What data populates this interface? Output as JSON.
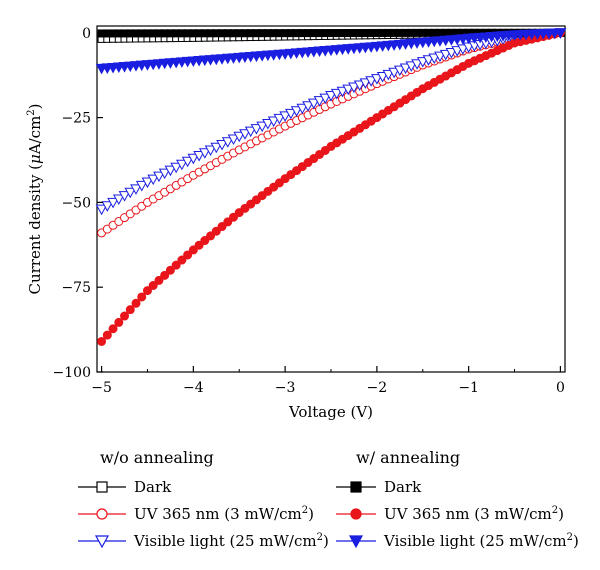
{
  "chart_data": {
    "type": "line",
    "title": "",
    "xlabel": "Voltage (V)",
    "ylabel": "Current density (μA/cm²)",
    "ylabel_base": "Current density (",
    "ylabel_unit": "μ",
    "ylabel_tail": "A/cm",
    "ylabel_exp": "2",
    "ylabel_close": ")",
    "xlim": [
      -5.05,
      0.05
    ],
    "ylim": [
      -100,
      2
    ],
    "xticks": [
      -5,
      -4,
      -3,
      -2,
      -1,
      0
    ],
    "xtick_labels": [
      "−5",
      "−4",
      "−3",
      "−2",
      "−1",
      "0"
    ],
    "yticks": [
      0,
      -25,
      -50,
      -75,
      -100
    ],
    "ytick_labels": [
      "0",
      "−25",
      "−50",
      "−75",
      "−100"
    ],
    "grid": false,
    "legend_position": "below",
    "series": [
      {
        "name": "Dark",
        "group": "w/o annealing",
        "marker": "square-open",
        "color": "#000000",
        "x": [
          -5.0,
          -4.0,
          -3.0,
          -2.0,
          -1.0,
          0.0
        ],
        "y": [
          -1.8,
          -1.5,
          -1.1,
          -0.7,
          -0.3,
          0.0
        ]
      },
      {
        "name": "UV 365 nm (3 mW/cm2)",
        "group": "w/o annealing",
        "marker": "circle-open",
        "color": "#e8151b",
        "x": [
          -5.0,
          -4.5,
          -4.0,
          -3.5,
          -3.0,
          -2.5,
          -2.0,
          -1.5,
          -1.0,
          -0.5,
          0.0
        ],
        "y": [
          -59,
          -50,
          -42,
          -34.5,
          -27.5,
          -21,
          -15,
          -9.5,
          -4.8,
          -1.5,
          0
        ]
      },
      {
        "name": "Visible light (25 mW/cm2)",
        "group": "w/o annealing",
        "marker": "triangle-down-open",
        "color": "#1a1ee0",
        "x": [
          -5.0,
          -4.5,
          -4.0,
          -3.5,
          -3.0,
          -2.5,
          -2.0,
          -1.5,
          -1.0,
          -0.5,
          0.0
        ],
        "y": [
          -52,
          -44,
          -37,
          -30.5,
          -24.5,
          -18.5,
          -13.5,
          -8.5,
          -4.2,
          -1.2,
          0
        ]
      },
      {
        "name": "Dark",
        "group": "w/ annealing",
        "marker": "square-filled",
        "color": "#000000",
        "x": [
          -5.0,
          -4.0,
          -3.0,
          -2.0,
          -1.0,
          0.0
        ],
        "y": [
          -0.2,
          -0.15,
          -0.1,
          -0.05,
          0.0,
          0.0
        ]
      },
      {
        "name": "UV 365 nm (3 mW/cm2)",
        "group": "w/ annealing",
        "marker": "circle-filled",
        "color": "#e8151b",
        "x": [
          -5.0,
          -4.5,
          -4.0,
          -3.5,
          -3.0,
          -2.5,
          -2.0,
          -1.5,
          -1.0,
          -0.5,
          0.0
        ],
        "y": [
          -91,
          -76,
          -64,
          -53,
          -43,
          -33.5,
          -25,
          -16.5,
          -9,
          -3,
          0
        ]
      },
      {
        "name": "Visible light (25 mW/cm2)",
        "group": "w/ annealing",
        "marker": "triangle-down-filled",
        "color": "#1a1ee0",
        "x": [
          -5.0,
          -4.0,
          -3.0,
          -2.0,
          -1.5,
          -1.0,
          -0.5,
          0.0
        ],
        "y": [
          -10.5,
          -8.3,
          -6.2,
          -4.0,
          -2.8,
          -1.6,
          -0.6,
          0
        ]
      }
    ]
  },
  "legend": {
    "group1_title": "w/o annealing",
    "group2_title": "w/ annealing",
    "dark": "Dark",
    "uv_prefix": "UV 365 nm (3 mW/cm",
    "vis_prefix": "Visible light (25 mW/cm",
    "exp": "2",
    "close": ")"
  }
}
